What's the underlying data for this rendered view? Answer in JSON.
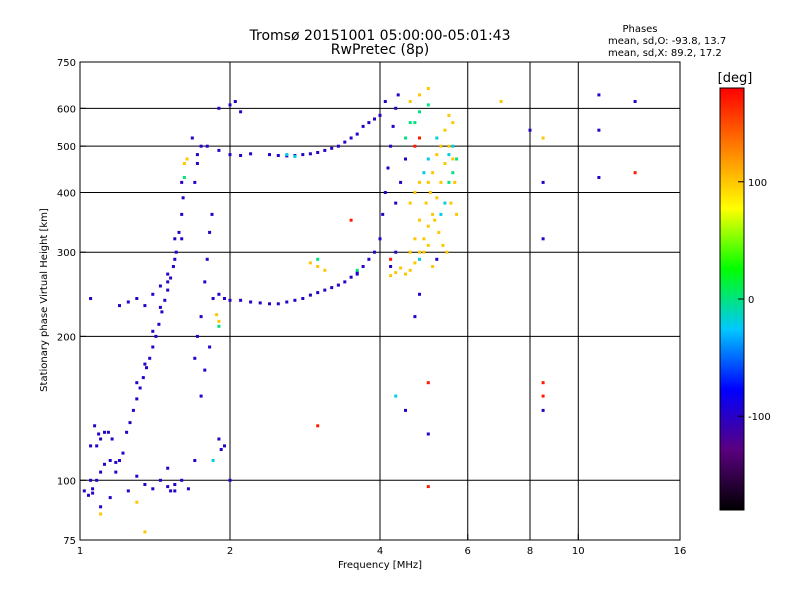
{
  "chart_data": {
    "type": "scatter",
    "title": "Tromsø 20151001 05:00:00-05:01:43",
    "subtitle": "RwPretec (8p)",
    "xlabel": "Frequency [MHz]",
    "ylabel": "Stationary phase Virtual Height [km]",
    "x_scale": "log",
    "y_scale": "log",
    "xlim": [
      1,
      16
    ],
    "ylim": [
      75,
      750
    ],
    "x_ticks": [
      1,
      2,
      4,
      6,
      8,
      10,
      16
    ],
    "y_ticks": [
      75,
      100,
      200,
      300,
      400,
      500,
      600,
      750
    ],
    "x_gridlines": [
      2,
      4,
      6,
      8,
      10
    ],
    "y_gridlines": [
      100,
      200,
      300,
      400,
      500,
      600
    ],
    "grid": true,
    "stats": {
      "heading": "Phases",
      "line_o": "mean, sd,O: -93.8, 13.7",
      "line_x": "mean, sd,X:  89.2, 17.2"
    },
    "colorbar": {
      "label": "[deg]",
      "range": [
        -180,
        180
      ],
      "ticks": [
        "100",
        "0",
        "-100"
      ],
      "tick_values": [
        100,
        0,
        -100
      ],
      "colors": [
        "#000000",
        "#5a0080",
        "#0000ff",
        "#00c8ff",
        "#00ff00",
        "#ffff00",
        "#ff8000",
        "#ff0000"
      ]
    },
    "series": [
      {
        "phase": -100,
        "points": [
          [
            1.02,
            95
          ],
          [
            1.04,
            93
          ],
          [
            1.06,
            96
          ],
          [
            1.08,
            100
          ],
          [
            1.1,
            104
          ],
          [
            1.12,
            108
          ],
          [
            1.15,
            110
          ],
          [
            1.18,
            109
          ],
          [
            1.2,
            110
          ],
          [
            1.22,
            114
          ],
          [
            1.08,
            118
          ],
          [
            1.1,
            122
          ],
          [
            1.12,
            126
          ],
          [
            1.24,
            126
          ],
          [
            1.26,
            132
          ],
          [
            1.28,
            140
          ],
          [
            1.3,
            148
          ],
          [
            1.32,
            156
          ],
          [
            1.34,
            164
          ],
          [
            1.36,
            172
          ],
          [
            1.38,
            180
          ],
          [
            1.4,
            190
          ],
          [
            1.42,
            200
          ],
          [
            1.44,
            212
          ],
          [
            1.46,
            225
          ],
          [
            1.48,
            238
          ],
          [
            1.5,
            250
          ],
          [
            1.52,
            265
          ],
          [
            1.54,
            280
          ],
          [
            1.56,
            300
          ],
          [
            1.58,
            330
          ],
          [
            1.6,
            360
          ],
          [
            1.61,
            390
          ],
          [
            1.3,
            160
          ],
          [
            1.35,
            175
          ],
          [
            1.4,
            205
          ],
          [
            1.45,
            230
          ],
          [
            1.5,
            260
          ],
          [
            1.55,
            290
          ],
          [
            1.6,
            320
          ],
          [
            1.05,
            240
          ],
          [
            1.2,
            232
          ],
          [
            1.25,
            236
          ],
          [
            1.3,
            240
          ],
          [
            1.35,
            232
          ],
          [
            1.4,
            245
          ],
          [
            1.45,
            255
          ],
          [
            1.5,
            270
          ],
          [
            1.55,
            320
          ],
          [
            1.6,
            420
          ],
          [
            1.25,
            95
          ],
          [
            1.3,
            102
          ],
          [
            1.35,
            98
          ],
          [
            1.4,
            96
          ],
          [
            1.45,
            100
          ],
          [
            1.5,
            97
          ],
          [
            1.55,
            95
          ],
          [
            1.6,
            100
          ],
          [
            1.65,
            96
          ],
          [
            1.7,
            180
          ],
          [
            1.72,
            200
          ],
          [
            1.75,
            220
          ],
          [
            1.78,
            260
          ],
          [
            1.8,
            290
          ],
          [
            1.82,
            330
          ],
          [
            1.84,
            360
          ],
          [
            1.7,
            420
          ],
          [
            1.72,
            460
          ],
          [
            1.75,
            500
          ],
          [
            1.68,
            520
          ],
          [
            1.72,
            480
          ],
          [
            1.8,
            500
          ],
          [
            1.9,
            490
          ],
          [
            2.0,
            480
          ],
          [
            2.1,
            478
          ],
          [
            2.2,
            482
          ],
          [
            1.85,
            240
          ],
          [
            1.9,
            245
          ],
          [
            1.95,
            240
          ],
          [
            2.0,
            238
          ],
          [
            2.1,
            238
          ],
          [
            2.2,
            236
          ],
          [
            2.3,
            235
          ],
          [
            2.4,
            234
          ],
          [
            2.5,
            234
          ],
          [
            2.6,
            236
          ],
          [
            2.7,
            238
          ],
          [
            2.8,
            240
          ],
          [
            2.9,
            244
          ],
          [
            3.0,
            247
          ],
          [
            3.1,
            250
          ],
          [
            3.2,
            253
          ],
          [
            3.3,
            256
          ],
          [
            3.4,
            260
          ],
          [
            3.5,
            266
          ],
          [
            3.6,
            272
          ],
          [
            3.7,
            280
          ],
          [
            3.8,
            290
          ],
          [
            3.9,
            300
          ],
          [
            4.0,
            320
          ],
          [
            4.05,
            360
          ],
          [
            4.1,
            400
          ],
          [
            4.15,
            450
          ],
          [
            4.2,
            500
          ],
          [
            4.25,
            550
          ],
          [
            4.3,
            600
          ],
          [
            4.35,
            640
          ],
          [
            4.1,
            620
          ],
          [
            4.0,
            580
          ],
          [
            3.7,
            550
          ],
          [
            3.6,
            530
          ],
          [
            3.5,
            520
          ],
          [
            3.4,
            510
          ],
          [
            3.3,
            500
          ],
          [
            3.2,
            495
          ],
          [
            3.1,
            490
          ],
          [
            3.0,
            485
          ],
          [
            2.9,
            482
          ],
          [
            2.8,
            480
          ],
          [
            2.7,
            478
          ],
          [
            2.6,
            477
          ],
          [
            2.5,
            478
          ],
          [
            2.4,
            480
          ],
          [
            3.8,
            560
          ],
          [
            3.9,
            570
          ],
          [
            4.3,
            380
          ],
          [
            4.4,
            420
          ],
          [
            4.5,
            470
          ],
          [
            4.3,
            300
          ],
          [
            1.9,
            600
          ],
          [
            2.0,
            610
          ],
          [
            2.05,
            620
          ],
          [
            2.1,
            590
          ],
          [
            1.95,
            118
          ],
          [
            2.0,
            100
          ],
          [
            1.9,
            122
          ],
          [
            1.92,
            116
          ],
          [
            1.05,
            100
          ],
          [
            1.06,
            94
          ],
          [
            1.1,
            88
          ],
          [
            1.15,
            92
          ],
          [
            1.18,
            104
          ],
          [
            1.5,
            106
          ],
          [
            1.52,
            95
          ],
          [
            1.55,
            98
          ],
          [
            1.7,
            110
          ],
          [
            1.75,
            150
          ],
          [
            1.78,
            170
          ],
          [
            1.82,
            190
          ],
          [
            4.5,
            140
          ],
          [
            5.0,
            125
          ],
          [
            5.2,
            290
          ],
          [
            4.8,
            245
          ],
          [
            4.7,
            220
          ],
          [
            8.5,
            320
          ],
          [
            8.5,
            140
          ],
          [
            8.5,
            420
          ],
          [
            11,
            430
          ],
          [
            11,
            540
          ],
          [
            11,
            640
          ],
          [
            13,
            620
          ],
          [
            8,
            540
          ],
          [
            1.05,
            118
          ],
          [
            1.07,
            130
          ],
          [
            1.09,
            125
          ],
          [
            1.14,
            126
          ],
          [
            1.16,
            122
          ],
          [
            3.6,
            270
          ],
          [
            4.2,
            280
          ]
        ]
      },
      {
        "phase": 100,
        "points": [
          [
            4.5,
            270
          ],
          [
            4.6,
            275
          ],
          [
            4.7,
            285
          ],
          [
            4.8,
            300
          ],
          [
            4.9,
            320
          ],
          [
            5.0,
            340
          ],
          [
            5.1,
            360
          ],
          [
            5.2,
            390
          ],
          [
            5.3,
            420
          ],
          [
            5.4,
            460
          ],
          [
            5.5,
            500
          ],
          [
            5.6,
            470
          ],
          [
            5.0,
            420
          ],
          [
            5.1,
            440
          ],
          [
            5.2,
            480
          ],
          [
            5.3,
            500
          ],
          [
            4.95,
            380
          ],
          [
            5.05,
            400
          ],
          [
            5.15,
            350
          ],
          [
            5.25,
            330
          ],
          [
            5.35,
            310
          ],
          [
            5.45,
            300
          ],
          [
            5.55,
            380
          ],
          [
            5.65,
            420
          ],
          [
            5.7,
            360
          ],
          [
            3.0,
            280
          ],
          [
            3.1,
            275
          ],
          [
            2.9,
            285
          ],
          [
            4.2,
            268
          ],
          [
            4.3,
            272
          ],
          [
            4.4,
            278
          ],
          [
            4.6,
            300
          ],
          [
            4.7,
            320
          ],
          [
            4.8,
            350
          ],
          [
            4.9,
            300
          ],
          [
            5.0,
            310
          ],
          [
            5.1,
            280
          ],
          [
            4.6,
            620
          ],
          [
            4.8,
            640
          ],
          [
            5.0,
            660
          ],
          [
            1.62,
            460
          ],
          [
            1.64,
            470
          ],
          [
            1.9,
            215
          ],
          [
            1.88,
            222
          ],
          [
            1.3,
            90
          ],
          [
            1.35,
            78
          ],
          [
            1.1,
            85
          ],
          [
            7.0,
            620
          ],
          [
            8.5,
            520
          ],
          [
            5.5,
            580
          ],
          [
            5.6,
            560
          ],
          [
            5.4,
            540
          ],
          [
            4.6,
            380
          ],
          [
            4.7,
            400
          ],
          [
            4.8,
            420
          ]
        ]
      },
      {
        "phase": 0,
        "points": [
          [
            3.0,
            290
          ],
          [
            3.6,
            275
          ],
          [
            4.5,
            520
          ],
          [
            4.6,
            560
          ],
          [
            4.8,
            590
          ],
          [
            5.0,
            610
          ],
          [
            1.62,
            430
          ],
          [
            1.9,
            210
          ],
          [
            5.6,
            440
          ],
          [
            5.7,
            470
          ],
          [
            5.5,
            420
          ],
          [
            4.7,
            560
          ]
        ]
      },
      {
        "phase": -20,
        "points": [
          [
            4.9,
            440
          ],
          [
            5.0,
            470
          ],
          [
            5.2,
            520
          ],
          [
            5.5,
            480
          ],
          [
            5.6,
            500
          ],
          [
            2.6,
            480
          ],
          [
            2.7,
            476
          ],
          [
            1.85,
            110
          ],
          [
            4.3,
            150
          ],
          [
            4.8,
            290
          ],
          [
            5.3,
            360
          ],
          [
            5.4,
            380
          ]
        ]
      },
      {
        "phase": 170,
        "points": [
          [
            4.7,
            500
          ],
          [
            4.8,
            520
          ],
          [
            8.5,
            160
          ],
          [
            8.5,
            150
          ],
          [
            5.0,
            160
          ],
          [
            3.0,
            130
          ],
          [
            3.5,
            350
          ],
          [
            13,
            440
          ],
          [
            4.2,
            290
          ],
          [
            5.0,
            97
          ]
        ]
      }
    ]
  }
}
